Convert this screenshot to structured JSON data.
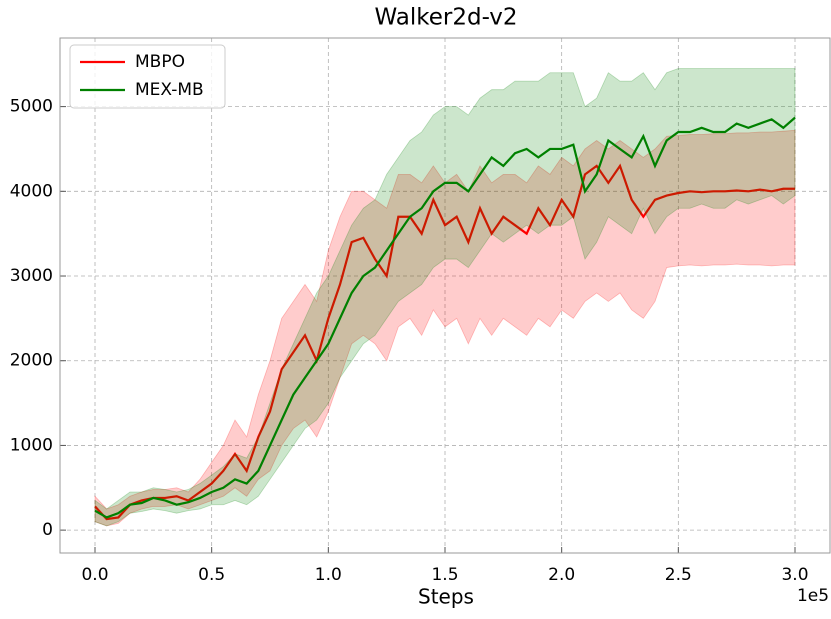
{
  "chart_data": {
    "type": "line",
    "title": "Walker2d-v2",
    "x_label": "Steps",
    "x_offset_label": "1e5",
    "x": [
      0,
      5000,
      10000,
      15000,
      20000,
      25000,
      30000,
      35000,
      40000,
      45000,
      50000,
      55000,
      60000,
      65000,
      70000,
      75000,
      80000,
      85000,
      90000,
      95000,
      100000,
      105000,
      110000,
      115000,
      120000,
      125000,
      130000,
      135000,
      140000,
      145000,
      150000,
      155000,
      160000,
      165000,
      170000,
      175000,
      180000,
      185000,
      190000,
      195000,
      200000,
      205000,
      210000,
      215000,
      220000,
      225000,
      230000,
      235000,
      240000,
      245000,
      250000,
      255000,
      260000,
      265000,
      270000,
      275000,
      280000,
      285000,
      290000,
      295000,
      300000
    ],
    "series": [
      {
        "name": "MBPO",
        "color": "#ff0000",
        "values": [
          280,
          130,
          150,
          300,
          350,
          380,
          380,
          400,
          350,
          450,
          550,
          700,
          900,
          700,
          1100,
          1400,
          1900,
          2100,
          2300,
          2000,
          2500,
          2900,
          3400,
          3450,
          3200,
          3000,
          3700,
          3700,
          3500,
          3900,
          3600,
          3700,
          3400,
          3800,
          3500,
          3700,
          3600,
          3500,
          3800,
          3600,
          3900,
          3700,
          4200,
          4300,
          4100,
          4300,
          3900,
          3700,
          3900,
          3950,
          3980,
          4000,
          3990,
          4000,
          4000,
          4010,
          4000,
          4020,
          4000,
          4030,
          4030
        ],
        "lower": [
          100,
          50,
          80,
          200,
          250,
          280,
          280,
          300,
          250,
          300,
          350,
          400,
          500,
          400,
          600,
          700,
          1000,
          1200,
          1300,
          1100,
          1400,
          1800,
          2200,
          2300,
          2200,
          2000,
          2400,
          2500,
          2300,
          2600,
          2400,
          2500,
          2200,
          2500,
          2300,
          2500,
          2400,
          2300,
          2500,
          2400,
          2600,
          2500,
          2700,
          2800,
          2700,
          2800,
          2600,
          2500,
          2700,
          3100,
          3120,
          3130,
          3120,
          3130,
          3130,
          3140,
          3130,
          3130,
          3120,
          3130,
          3130
        ],
        "upper": [
          400,
          250,
          300,
          400,
          450,
          480,
          480,
          500,
          450,
          600,
          800,
          1000,
          1300,
          1100,
          1600,
          2000,
          2500,
          2700,
          2900,
          2700,
          3300,
          3700,
          4000,
          4000,
          3900,
          3800,
          4200,
          4200,
          4100,
          4300,
          4100,
          4200,
          4000,
          4300,
          4100,
          4200,
          4200,
          4100,
          4300,
          4200,
          4400,
          4300,
          4500,
          4600,
          4500,
          4600,
          4500,
          4400,
          4500,
          4650,
          4660,
          4670,
          4670,
          4680,
          4680,
          4690,
          4690,
          4700,
          4700,
          4710,
          4720
        ]
      },
      {
        "name": "MEX-MB",
        "color": "#008000",
        "values": [
          230,
          150,
          200,
          300,
          320,
          380,
          350,
          300,
          330,
          380,
          450,
          500,
          600,
          550,
          700,
          1000,
          1300,
          1600,
          1800,
          2000,
          2200,
          2500,
          2800,
          3000,
          3100,
          3300,
          3500,
          3700,
          3800,
          4000,
          4100,
          4100,
          4000,
          4200,
          4400,
          4300,
          4450,
          4500,
          4400,
          4500,
          4500,
          4550,
          4000,
          4200,
          4600,
          4500,
          4400,
          4650,
          4300,
          4600,
          4700,
          4700,
          4750,
          4700,
          4700,
          4800,
          4750,
          4800,
          4850,
          4750,
          4870
        ],
        "lower": [
          100,
          50,
          100,
          200,
          220,
          250,
          230,
          200,
          230,
          250,
          300,
          300,
          350,
          300,
          400,
          600,
          800,
          1000,
          1200,
          1300,
          1500,
          1800,
          2000,
          2200,
          2300,
          2500,
          2700,
          2800,
          2900,
          3100,
          3200,
          3200,
          3100,
          3300,
          3500,
          3400,
          3500,
          3600,
          3500,
          3600,
          3600,
          3700,
          3200,
          3400,
          3700,
          3600,
          3500,
          3800,
          3500,
          3700,
          3800,
          3800,
          3850,
          3800,
          3800,
          3900,
          3850,
          3900,
          3950,
          3850,
          3950
        ],
        "upper": [
          350,
          250,
          350,
          450,
          450,
          500,
          480,
          450,
          480,
          550,
          650,
          750,
          900,
          850,
          1100,
          1500,
          1900,
          2200,
          2500,
          2800,
          3000,
          3300,
          3600,
          3800,
          3900,
          4200,
          4400,
          4600,
          4700,
          4900,
          5000,
          5000,
          4900,
          5100,
          5200,
          5200,
          5300,
          5300,
          5300,
          5400,
          5400,
          5400,
          5000,
          5100,
          5400,
          5300,
          5300,
          5400,
          5200,
          5400,
          5450,
          5450,
          5450,
          5450,
          5450,
          5450,
          5450,
          5450,
          5450,
          5450,
          5450
        ]
      }
    ],
    "xlim": [
      -15000,
      315000
    ],
    "xticks": [
      {
        "value": 0,
        "label": "0.0"
      },
      {
        "value": 50000,
        "label": "0.5"
      },
      {
        "value": 100000,
        "label": "1.0"
      },
      {
        "value": 150000,
        "label": "1.5"
      },
      {
        "value": 200000,
        "label": "2.0"
      },
      {
        "value": 250000,
        "label": "2.5"
      },
      {
        "value": 300000,
        "label": "3.0"
      }
    ],
    "ylim": [
      -270,
      5810
    ],
    "yticks": [
      0,
      1000,
      2000,
      3000,
      4000,
      5000
    ],
    "grid": true,
    "legend_position": "upper left"
  }
}
